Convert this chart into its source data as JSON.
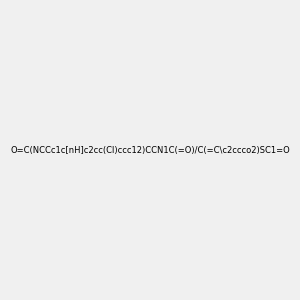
{
  "smiles": "O=C(NCCc1c[nH]c2cc(Cl)ccc12)CCN1C(=O)/C(=C\\c2ccco2)SC1=O",
  "image_size": 300,
  "background_color": "#f0f0f0",
  "title": ""
}
